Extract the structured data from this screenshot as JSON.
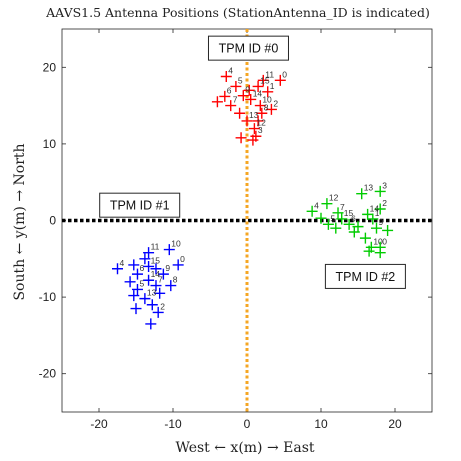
{
  "chart_data": {
    "type": "scatter",
    "title": "AAVS1.5 Antenna Positions (StationAntenna_ID is indicated)",
    "xlabel": "West ← x(m) → East",
    "ylabel": "South ← y(m) → North",
    "xlim": [
      -25,
      25
    ],
    "ylim": [
      -25,
      25
    ],
    "xticks": [
      -20,
      -10,
      0,
      10,
      20
    ],
    "yticks": [
      -20,
      -10,
      0,
      10,
      20
    ],
    "xtick_labels": [
      "-20",
      "-10",
      "0",
      "10",
      "20"
    ],
    "ytick_labels": [
      "-20",
      "-10",
      "0",
      "10",
      "20"
    ],
    "grid": false,
    "reference_lines": [
      {
        "orientation": "horizontal",
        "value": 0,
        "color": "#000000",
        "style": "dotted"
      },
      {
        "orientation": "vertical",
        "value": 0,
        "color": "#f5a623",
        "style": "dotted"
      }
    ],
    "annotations": [
      {
        "text": "TPM ID #0",
        "x": 0.2,
        "y": 22.5
      },
      {
        "text": "TPM ID #1",
        "x": -14.5,
        "y": 2.0
      },
      {
        "text": "TPM ID #2",
        "x": 16.0,
        "y": -7.3
      }
    ],
    "series": [
      {
        "color": "#ff0000",
        "points": [
          {
            "label": "4",
            "x": -2.8,
            "y": 18.8
          },
          {
            "label": "11",
            "x": 2.2,
            "y": 18.3
          },
          {
            "label": "0",
            "x": 4.5,
            "y": 18.3
          },
          {
            "label": "5",
            "x": -1.5,
            "y": 17.5
          },
          {
            "label": "15",
            "x": 1.5,
            "y": 17.5
          },
          {
            "label": "",
            "x": 0.3,
            "y": 17.0
          },
          {
            "label": "1",
            "x": 2.8,
            "y": 16.8
          },
          {
            "label": "6",
            "x": -3.0,
            "y": 16.2
          },
          {
            "label": "9",
            "x": -0.5,
            "y": 16.3
          },
          {
            "label": "14",
            "x": 0.5,
            "y": 15.8
          },
          {
            "label": "7",
            "x": -2.2,
            "y": 15.0
          },
          {
            "label": "10",
            "x": 1.8,
            "y": 15.0
          },
          {
            "label": "",
            "x": -4.0,
            "y": 15.5
          },
          {
            "label": "2",
            "x": 3.3,
            "y": 14.5
          },
          {
            "label": "",
            "x": -1.0,
            "y": 14.0
          },
          {
            "label": "8",
            "x": 2.0,
            "y": 14.0
          },
          {
            "label": "13",
            "x": 0.0,
            "y": 13.0
          },
          {
            "label": "",
            "x": 1.5,
            "y": 13.0
          },
          {
            "label": "12",
            "x": 1.0,
            "y": 12.0
          },
          {
            "label": "3",
            "x": 1.2,
            "y": 11.0
          },
          {
            "label": "",
            "x": -0.8,
            "y": 10.8
          },
          {
            "label": "",
            "x": 0.8,
            "y": 10.5
          }
        ]
      },
      {
        "color": "#0000ff",
        "points": [
          {
            "label": "10",
            "x": -10.5,
            "y": -3.8
          },
          {
            "label": "11",
            "x": -13.3,
            "y": -4.2
          },
          {
            "label": "",
            "x": -13.8,
            "y": -5.0
          },
          {
            "label": "4",
            "x": -17.5,
            "y": -6.3
          },
          {
            "label": "",
            "x": -15.3,
            "y": -5.8
          },
          {
            "label": "15",
            "x": -13.3,
            "y": -6.0
          },
          {
            "label": "0",
            "x": -9.3,
            "y": -5.8
          },
          {
            "label": "",
            "x": -12.3,
            "y": -6.3
          },
          {
            "label": "6",
            "x": -14.8,
            "y": -7.0
          },
          {
            "label": "9",
            "x": -11.3,
            "y": -7.0
          },
          {
            "label": "",
            "x": -15.8,
            "y": -8.0
          },
          {
            "label": "14",
            "x": -13.3,
            "y": -7.8
          },
          {
            "label": "7",
            "x": -12.3,
            "y": -8.5
          },
          {
            "label": "8",
            "x": -10.3,
            "y": -8.5
          },
          {
            "label": "5",
            "x": -14.8,
            "y": -9.0
          },
          {
            "label": "",
            "x": -11.8,
            "y": -9.5
          },
          {
            "label": "",
            "x": -15.3,
            "y": -9.8
          },
          {
            "label": "13",
            "x": -13.8,
            "y": -10.2
          },
          {
            "label": "",
            "x": -12.8,
            "y": -11.0
          },
          {
            "label": "",
            "x": -15.0,
            "y": -11.5
          },
          {
            "label": "2",
            "x": -12.0,
            "y": -12.0
          },
          {
            "label": "",
            "x": -13.0,
            "y": -13.5
          }
        ]
      },
      {
        "color": "#00cc00",
        "points": [
          {
            "label": "13",
            "x": 15.5,
            "y": 3.5
          },
          {
            "label": "3",
            "x": 18.0,
            "y": 3.8
          },
          {
            "label": "12",
            "x": 10.8,
            "y": 2.2
          },
          {
            "label": "4",
            "x": 8.8,
            "y": 1.2
          },
          {
            "label": "7",
            "x": 12.3,
            "y": 1.0
          },
          {
            "label": "2",
            "x": 18.0,
            "y": 1.5
          },
          {
            "label": "",
            "x": 10.0,
            "y": 0.3
          },
          {
            "label": "15",
            "x": 12.8,
            "y": 0.2
          },
          {
            "label": "14",
            "x": 16.3,
            "y": 0.8
          },
          {
            "label": "5",
            "x": 11.0,
            "y": -0.5
          },
          {
            "label": "6",
            "x": 13.8,
            "y": -0.5
          },
          {
            "label": "",
            "x": 15.0,
            "y": -0.8
          },
          {
            "label": "1",
            "x": 17.0,
            "y": 0.2
          },
          {
            "label": "9",
            "x": 17.5,
            "y": -1.0
          },
          {
            "label": "",
            "x": 12.0,
            "y": -1.0
          },
          {
            "label": "",
            "x": 14.5,
            "y": -1.5
          },
          {
            "label": "",
            "x": 19.0,
            "y": -1.3
          },
          {
            "label": "",
            "x": 16.0,
            "y": -2.3
          },
          {
            "label": "10",
            "x": 16.8,
            "y": -3.5
          },
          {
            "label": "0",
            "x": 18.0,
            "y": -3.5
          },
          {
            "label": "",
            "x": 16.5,
            "y": -4.0
          },
          {
            "label": "",
            "x": 18.0,
            "y": -4.2
          }
        ]
      }
    ]
  }
}
